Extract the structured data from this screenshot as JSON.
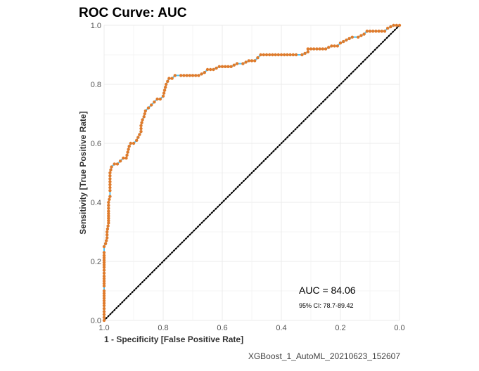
{
  "chart_data": {
    "type": "line",
    "title": "ROC Curve: AUC",
    "xlabel": "1 - Specificity [False Positive Rate]",
    "ylabel": "Sensitivity [True Positive Rate]",
    "x_axis_reversed": true,
    "xlim": [
      1.0,
      0.0
    ],
    "ylim": [
      0.0,
      1.0
    ],
    "x_ticks": [
      "1.0",
      "0.8",
      "0.6",
      "0.4",
      "0.2",
      "0.0"
    ],
    "y_ticks": [
      "0.0",
      "0.2",
      "0.4",
      "0.6",
      "0.8",
      "1.0"
    ],
    "grid": true,
    "series": [
      {
        "line_color": "#4fc3f7",
        "point_color": "#e07b2b",
        "points": [
          [
            1.0,
            0.0
          ],
          [
            1.0,
            0.02
          ],
          [
            1.0,
            0.05
          ],
          [
            1.0,
            0.1
          ],
          [
            1.0,
            0.15
          ],
          [
            1.0,
            0.18
          ],
          [
            1.0,
            0.22
          ],
          [
            1.0,
            0.25
          ],
          [
            0.995,
            0.26
          ],
          [
            0.99,
            0.28
          ],
          [
            0.99,
            0.3
          ],
          [
            0.985,
            0.33
          ],
          [
            0.985,
            0.37
          ],
          [
            0.985,
            0.4
          ],
          [
            0.98,
            0.42
          ],
          [
            0.98,
            0.45
          ],
          [
            0.98,
            0.48
          ],
          [
            0.98,
            0.5
          ],
          [
            0.975,
            0.52
          ],
          [
            0.965,
            0.53
          ],
          [
            0.955,
            0.53
          ],
          [
            0.945,
            0.54
          ],
          [
            0.935,
            0.55
          ],
          [
            0.925,
            0.55
          ],
          [
            0.92,
            0.57
          ],
          [
            0.915,
            0.59
          ],
          [
            0.91,
            0.6
          ],
          [
            0.9,
            0.6
          ],
          [
            0.89,
            0.61
          ],
          [
            0.885,
            0.62
          ],
          [
            0.88,
            0.63
          ],
          [
            0.875,
            0.64
          ],
          [
            0.875,
            0.66
          ],
          [
            0.87,
            0.68
          ],
          [
            0.865,
            0.69
          ],
          [
            0.86,
            0.71
          ],
          [
            0.85,
            0.72
          ],
          [
            0.84,
            0.73
          ],
          [
            0.83,
            0.74
          ],
          [
            0.82,
            0.75
          ],
          [
            0.81,
            0.75
          ],
          [
            0.8,
            0.76
          ],
          [
            0.795,
            0.78
          ],
          [
            0.79,
            0.8
          ],
          [
            0.785,
            0.81
          ],
          [
            0.78,
            0.82
          ],
          [
            0.77,
            0.82
          ],
          [
            0.76,
            0.83
          ],
          [
            0.74,
            0.83
          ],
          [
            0.72,
            0.83
          ],
          [
            0.7,
            0.83
          ],
          [
            0.68,
            0.83
          ],
          [
            0.66,
            0.84
          ],
          [
            0.65,
            0.85
          ],
          [
            0.63,
            0.85
          ],
          [
            0.61,
            0.86
          ],
          [
            0.59,
            0.86
          ],
          [
            0.57,
            0.86
          ],
          [
            0.55,
            0.87
          ],
          [
            0.53,
            0.87
          ],
          [
            0.51,
            0.88
          ],
          [
            0.49,
            0.88
          ],
          [
            0.48,
            0.89
          ],
          [
            0.47,
            0.9
          ],
          [
            0.45,
            0.9
          ],
          [
            0.43,
            0.9
          ],
          [
            0.41,
            0.9
          ],
          [
            0.39,
            0.9
          ],
          [
            0.37,
            0.9
          ],
          [
            0.35,
            0.9
          ],
          [
            0.33,
            0.9
          ],
          [
            0.31,
            0.91
          ],
          [
            0.31,
            0.92
          ],
          [
            0.29,
            0.92
          ],
          [
            0.27,
            0.92
          ],
          [
            0.25,
            0.92
          ],
          [
            0.23,
            0.93
          ],
          [
            0.21,
            0.93
          ],
          [
            0.2,
            0.94
          ],
          [
            0.18,
            0.95
          ],
          [
            0.16,
            0.96
          ],
          [
            0.14,
            0.96
          ],
          [
            0.12,
            0.97
          ],
          [
            0.11,
            0.98
          ],
          [
            0.09,
            0.98
          ],
          [
            0.07,
            0.98
          ],
          [
            0.05,
            0.98
          ],
          [
            0.04,
            0.99
          ],
          [
            0.02,
            1.0
          ],
          [
            0.01,
            1.0
          ],
          [
            0.0,
            1.0
          ]
        ]
      }
    ],
    "reference_line": {
      "from": [
        1.0,
        0.0
      ],
      "to": [
        0.0,
        1.0
      ],
      "style": "dotted",
      "color": "#000000"
    },
    "annotations": {
      "auc": "AUC = 84.06",
      "ci": "95% CI: 78.7-89.42"
    },
    "caption": "XGBoost_1_AutoML_20210623_152607"
  }
}
